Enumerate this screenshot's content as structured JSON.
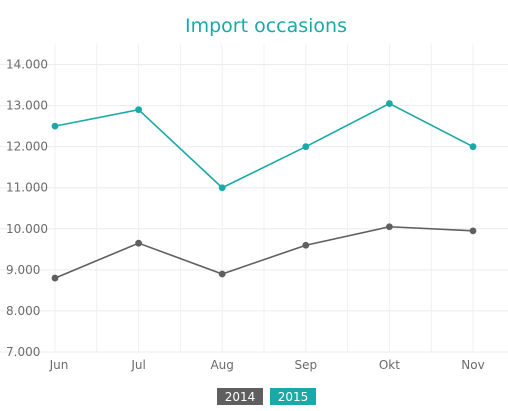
{
  "chart_data": {
    "type": "line",
    "title": "Import occasions",
    "xlabel": "",
    "ylabel": "",
    "categories": [
      "Jun",
      "Jul",
      "Aug",
      "Sep",
      "Okt",
      "Nov"
    ],
    "yticks": [
      "7.000",
      "8.000",
      "9.000",
      "10.000",
      "11.000",
      "12.000",
      "13.000",
      "14.000"
    ],
    "ylim": [
      7000,
      14500
    ],
    "grid": true,
    "legend_position": "bottom-center",
    "series": [
      {
        "name": "2014",
        "color": "#5f5f5f",
        "values": [
          8800,
          9650,
          8900,
          9600,
          10050,
          9950
        ]
      },
      {
        "name": "2015",
        "color": "#1aa9a8",
        "values": [
          12500,
          12900,
          11000,
          12000,
          13050,
          12000
        ]
      }
    ]
  }
}
